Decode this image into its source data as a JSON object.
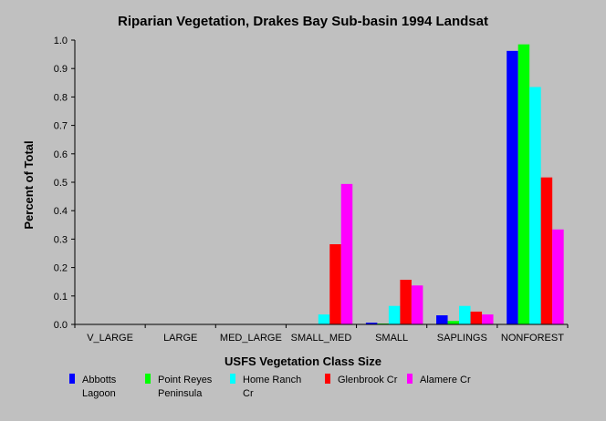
{
  "chart_data": {
    "type": "bar",
    "title": "Riparian Vegetation, Drakes Bay Sub-basin 1994 Landsat",
    "xlabel": "USFS Vegetation Class Size",
    "ylabel": "Percent of Total",
    "ylim": [
      0,
      1.0
    ],
    "yticks": [
      "0.0",
      "0.1",
      "0.2",
      "0.3",
      "0.4",
      "0.5",
      "0.6",
      "0.7",
      "0.8",
      "0.9",
      "1.0"
    ],
    "grid": false,
    "legend_position": "bottom",
    "categories": [
      "V_LARGE",
      "LARGE",
      "MED_LARGE",
      "SMALL_MED",
      "SMALL",
      "SAPLINGS",
      "NONFOREST"
    ],
    "series": [
      {
        "name": "Abbotts Lagoon",
        "legend_lines": [
          "Abbotts",
          "Lagoon"
        ],
        "color": "#0000ff",
        "values": [
          0,
          0,
          0,
          0,
          0.006,
          0.032,
          0.962
        ]
      },
      {
        "name": "Point Reyes Peninsula",
        "legend_lines": [
          "Point Reyes",
          "Peninsula"
        ],
        "color": "#00ff00",
        "values": [
          0,
          0,
          0,
          0,
          0.003,
          0.012,
          0.985
        ]
      },
      {
        "name": "Home Ranch Cr",
        "legend_lines": [
          "Home Ranch",
          "Cr"
        ],
        "color": "#00ffff",
        "values": [
          0,
          0,
          0,
          0.035,
          0.065,
          0.065,
          0.835
        ]
      },
      {
        "name": "Glenbrook Cr",
        "legend_lines": [
          "Glenbrook Cr"
        ],
        "color": "#ff0000",
        "values": [
          0,
          0,
          0,
          0.282,
          0.157,
          0.045,
          0.517
        ]
      },
      {
        "name": "Alamere Cr",
        "legend_lines": [
          "Alamere Cr"
        ],
        "color": "#ff00ff",
        "values": [
          0,
          0,
          0,
          0.494,
          0.137,
          0.035,
          0.334
        ]
      }
    ]
  }
}
